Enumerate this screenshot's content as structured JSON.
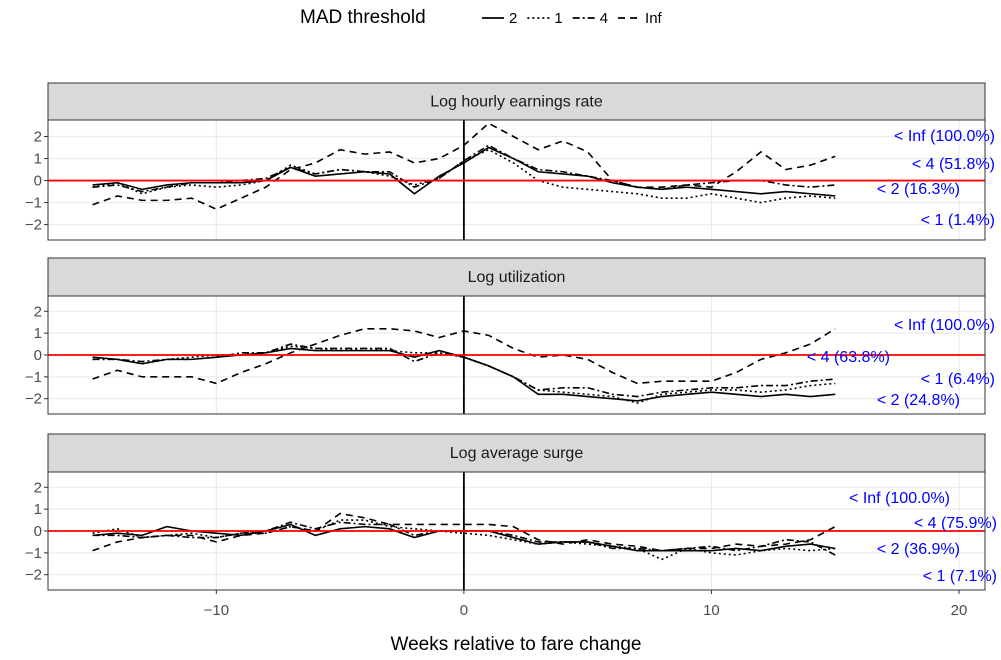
{
  "chart_data": {
    "type": "line",
    "legend_title": "MAD threshold",
    "xlabel": "Weeks relative to fare change",
    "xlim": [
      -16.8,
      21.05
    ],
    "xticks": [
      {
        "value": -10,
        "label": "−10"
      },
      0,
      10,
      20
    ],
    "grid": true,
    "hline": {
      "value": 0,
      "color": "#ff0000"
    },
    "vline": {
      "value": 0,
      "color": "#000000"
    },
    "x": [
      -15,
      -14,
      -13,
      -12,
      -11,
      -10,
      -9,
      -8,
      -7,
      -6,
      -5,
      -4,
      -3,
      -2,
      -1,
      0,
      1,
      2,
      3,
      4,
      5,
      6,
      7,
      8,
      9,
      10,
      11,
      12,
      13,
      14,
      15
    ],
    "series": [
      {
        "name": "2",
        "color": "#000000",
        "linetype": "solid"
      },
      {
        "name": "1",
        "color": "#000000",
        "linetype": "dotted"
      },
      {
        "name": "4",
        "color": "#000000",
        "linetype": "dotdash"
      },
      {
        "name": "Inf",
        "color": "#000000",
        "linetype": "dashed"
      }
    ],
    "panels": [
      {
        "title": "Log hourly earnings rate",
        "ylim": [
          -2.7,
          2.75
        ],
        "yticks": [
          {
            "value": -2,
            "label": "−2"
          },
          {
            "value": -1,
            "label": "−1"
          },
          0,
          1,
          2
        ],
        "values": [
          [
            -0.2,
            -0.1,
            -0.4,
            -0.2,
            -0.1,
            -0.1,
            -0.1,
            0.0,
            0.6,
            0.2,
            0.3,
            0.4,
            0.3,
            -0.6,
            0.2,
            0.8,
            1.5,
            1.0,
            0.4,
            0.3,
            0.2,
            -0.1,
            -0.3,
            -0.4,
            -0.3,
            -0.4,
            -0.5,
            -0.6,
            -0.5,
            -0.6,
            -0.7
          ],
          [
            -0.3,
            -0.1,
            -0.6,
            -0.3,
            -0.2,
            -0.3,
            -0.2,
            0.0,
            0.7,
            0.3,
            0.5,
            0.4,
            0.2,
            -0.2,
            0.1,
            0.9,
            1.4,
            0.8,
            0.0,
            -0.3,
            -0.4,
            -0.5,
            -0.6,
            -0.8,
            -0.8,
            -0.6,
            -0.8,
            -1.0,
            -0.8,
            -0.7,
            -0.8
          ],
          [
            -0.3,
            -0.2,
            -0.5,
            -0.3,
            -0.1,
            -0.1,
            0.0,
            0.1,
            0.6,
            0.3,
            0.5,
            0.4,
            0.4,
            -0.3,
            0.1,
            0.9,
            1.6,
            1.0,
            0.5,
            0.4,
            0.2,
            0.0,
            -0.3,
            -0.4,
            -0.2,
            -0.1,
            0.0,
            0.0,
            -0.2,
            -0.3,
            -0.2
          ],
          [
            -1.1,
            -0.7,
            -0.9,
            -0.9,
            -0.8,
            -1.3,
            -0.8,
            -0.3,
            0.5,
            0.8,
            1.4,
            1.2,
            1.3,
            0.8,
            1.0,
            1.6,
            2.6,
            2.0,
            1.4,
            1.8,
            1.3,
            0.0,
            -0.3,
            -0.3,
            -0.2,
            -0.3,
            0.4,
            1.3,
            0.5,
            0.7,
            1.1
          ]
        ],
        "annotations": [
          "< Inf (100.0%)",
          "< 4 (51.8%)",
          "< 2 (16.3%)",
          "< 1 (1.4%)"
        ]
      },
      {
        "title": "Log utilization",
        "ylim": [
          -2.7,
          2.7
        ],
        "yticks": [
          {
            "value": -2,
            "label": "−2"
          },
          {
            "value": -1,
            "label": "−1"
          },
          0,
          1,
          2
        ],
        "values": [
          [
            -0.1,
            -0.2,
            -0.4,
            -0.2,
            -0.2,
            -0.1,
            0.0,
            0.1,
            0.3,
            0.2,
            0.2,
            0.2,
            0.2,
            -0.1,
            0.2,
            -0.1,
            -0.5,
            -1.0,
            -1.8,
            -1.8,
            -1.9,
            -2.0,
            -2.1,
            -1.9,
            -1.8,
            -1.7,
            -1.8,
            -1.9,
            -1.8,
            -1.9,
            -1.8
          ],
          [
            -0.2,
            -0.2,
            -0.4,
            -0.2,
            -0.1,
            0.0,
            0.0,
            0.1,
            0.4,
            0.3,
            0.2,
            0.3,
            0.2,
            0.1,
            0.1,
            -0.1,
            -0.5,
            -1.0,
            -1.6,
            -1.7,
            -1.8,
            -1.9,
            -2.2,
            -1.8,
            -1.7,
            -1.6,
            -1.6,
            -1.7,
            -1.6,
            -1.4,
            -1.3
          ],
          [
            -0.2,
            -0.2,
            -0.3,
            -0.2,
            -0.2,
            -0.1,
            0.1,
            0.1,
            0.5,
            0.3,
            0.3,
            0.3,
            0.3,
            -0.3,
            0.1,
            -0.1,
            -0.5,
            -1.0,
            -1.6,
            -1.5,
            -1.5,
            -1.8,
            -1.9,
            -1.7,
            -1.6,
            -1.5,
            -1.5,
            -1.4,
            -1.4,
            -1.2,
            -1.1
          ],
          [
            -1.1,
            -0.7,
            -1.0,
            -1.0,
            -1.0,
            -1.3,
            -0.8,
            -0.4,
            0.1,
            0.5,
            0.9,
            1.2,
            1.2,
            1.1,
            0.8,
            1.1,
            0.9,
            0.3,
            -0.1,
            0.0,
            -0.2,
            -0.8,
            -1.3,
            -1.2,
            -1.2,
            -1.2,
            -0.8,
            -0.2,
            0.1,
            0.5,
            1.2
          ]
        ],
        "annotations": [
          "< Inf (100.0%)",
          "< 4 (63.8%)",
          "< 1 (6.4%)",
          "< 2 (24.8%)"
        ]
      },
      {
        "title": "Log average surge",
        "ylim": [
          -2.7,
          2.7
        ],
        "yticks": [
          {
            "value": -2,
            "label": "−2"
          },
          {
            "value": -1,
            "label": "−1"
          },
          0,
          1,
          2
        ],
        "values": [
          [
            -0.2,
            -0.1,
            -0.2,
            0.2,
            0.0,
            -0.1,
            -0.2,
            0.0,
            0.3,
            -0.2,
            0.1,
            0.2,
            0.1,
            -0.3,
            0.0,
            0.0,
            0.0,
            -0.3,
            -0.6,
            -0.5,
            -0.5,
            -0.7,
            -0.9,
            -0.9,
            -0.9,
            -0.9,
            -0.8,
            -0.9,
            -0.7,
            -0.6,
            -0.8
          ],
          [
            -0.1,
            0.1,
            -0.3,
            -0.2,
            -0.1,
            -0.3,
            -0.1,
            -0.1,
            0.2,
            0.0,
            0.5,
            0.5,
            0.2,
            0.1,
            0.0,
            -0.1,
            -0.2,
            -0.4,
            -0.6,
            -0.5,
            -0.6,
            -0.7,
            -0.8,
            -1.3,
            -0.8,
            -1.0,
            -1.1,
            -0.9,
            -0.8,
            -0.9,
            -0.8
          ],
          [
            -0.2,
            -0.2,
            -0.3,
            -0.2,
            -0.3,
            -0.3,
            -0.1,
            0.0,
            0.4,
            0.1,
            0.4,
            0.3,
            0.3,
            -0.2,
            0.0,
            0.0,
            0.0,
            -0.2,
            -0.5,
            -0.5,
            -0.5,
            -0.8,
            -0.8,
            -0.9,
            -0.8,
            -0.7,
            -0.9,
            -0.7,
            -0.4,
            -0.5,
            -1.1
          ],
          [
            -0.9,
            -0.5,
            -0.3,
            -0.2,
            -0.2,
            -0.5,
            -0.2,
            -0.1,
            0.2,
            0.0,
            0.8,
            0.6,
            0.3,
            0.3,
            0.3,
            0.3,
            0.3,
            0.2,
            -0.4,
            -0.6,
            -0.4,
            -0.6,
            -0.7,
            -0.9,
            -0.8,
            -0.8,
            -0.6,
            -0.7,
            -0.6,
            -0.4,
            0.2
          ]
        ],
        "annotations": [
          "< Inf (100.0%)",
          "< 4 (75.9%)",
          "< 2 (36.9%)",
          "< 1 (7.1%)"
        ]
      }
    ]
  }
}
